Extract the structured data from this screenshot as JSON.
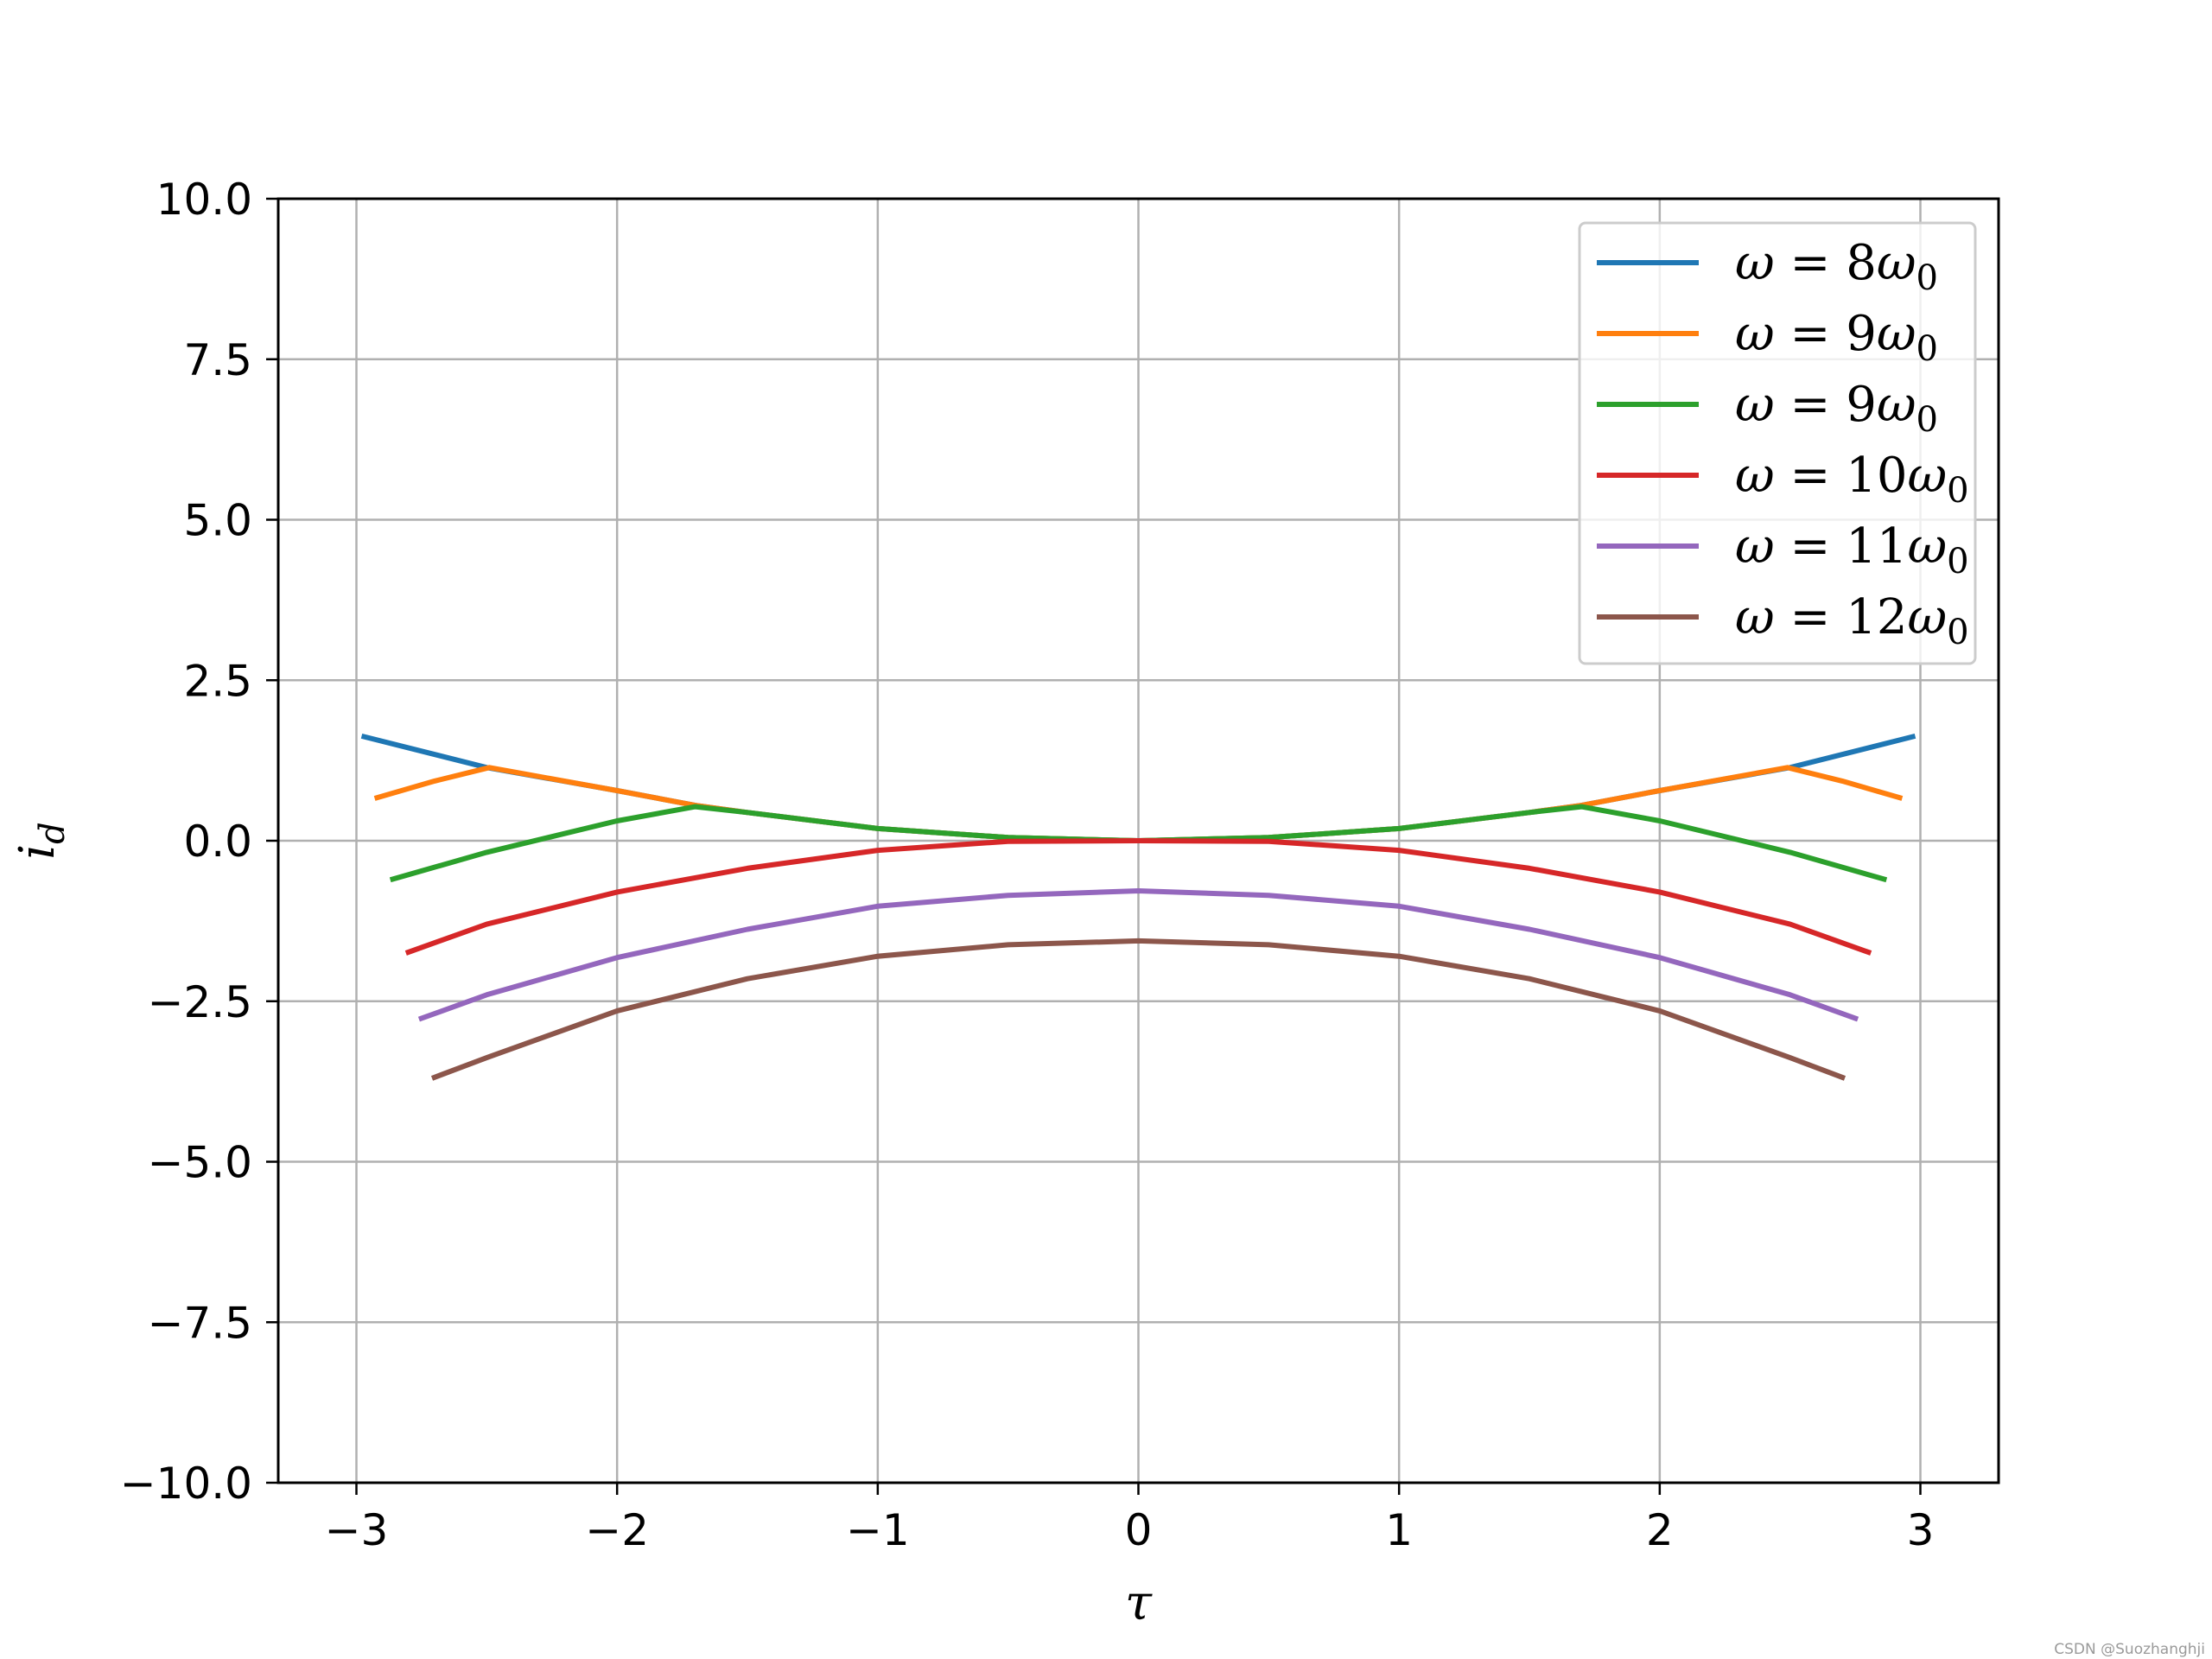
{
  "chart_data": {
    "type": "line",
    "title": "",
    "xlabel": "τ",
    "ylabel_symbol": "i",
    "ylabel_subscript": "d",
    "xlim": [
      -3.3,
      3.3
    ],
    "ylim": [
      -10,
      10
    ],
    "xticks": [
      -3,
      -2,
      -1,
      0,
      1,
      2,
      3
    ],
    "xtick_labels": [
      "−3",
      "−2",
      "−1",
      "0",
      "1",
      "2",
      "3"
    ],
    "yticks": [
      10,
      7.5,
      5,
      2.5,
      0,
      -2.5,
      -5,
      -7.5,
      -10
    ],
    "ytick_labels": [
      "10.0",
      "7.5",
      "5.0",
      "2.5",
      "0.0",
      "−2.5",
      "−5.0",
      "−7.5",
      "−10.0"
    ],
    "grid": true,
    "legend_position": "top-right",
    "series": [
      {
        "name": "ω = 8ω0",
        "label_omega": "ω",
        "label_eq": " = ",
        "label_coef": "8",
        "label_sub": "0",
        "color": "#1f77b4",
        "x": [
          -2.98,
          -2.5,
          -2.0,
          -1.7,
          -1.5,
          -1.0,
          -0.5,
          0,
          0.5,
          1.0,
          1.5,
          1.7,
          2.0,
          2.5,
          2.98
        ],
        "y": [
          1.63,
          1.14,
          0.78,
          0.55,
          0.44,
          0.19,
          0.05,
          0,
          0.05,
          0.19,
          0.44,
          0.55,
          0.78,
          1.14,
          1.63
        ]
      },
      {
        "name": "ω = 9ω0",
        "label_omega": "ω",
        "label_eq": " = ",
        "label_coef": "9",
        "label_sub": "0",
        "color": "#ff7f0e",
        "x": [
          -2.93,
          -2.7,
          -2.49,
          -2.0,
          -1.7,
          -1.5,
          -1.0,
          -0.5,
          0,
          0.5,
          1.0,
          1.5,
          1.7,
          2.0,
          2.49,
          2.7,
          2.93
        ],
        "y": [
          0.66,
          0.93,
          1.14,
          0.78,
          0.55,
          0.44,
          0.19,
          0.05,
          0,
          0.05,
          0.19,
          0.44,
          0.55,
          0.78,
          1.14,
          0.93,
          0.66
        ]
      },
      {
        "name": "ω = 9ω0",
        "label_omega": "ω",
        "label_eq": " = ",
        "label_coef": "9",
        "label_sub": "0",
        "color": "#2ca02c",
        "x": [
          -2.87,
          -2.5,
          -2.0,
          -1.7,
          -1.5,
          -1.0,
          -0.5,
          0,
          0.5,
          1.0,
          1.5,
          1.7,
          2.0,
          2.5,
          2.87
        ],
        "y": [
          -0.61,
          -0.18,
          0.31,
          0.53,
          0.44,
          0.19,
          0.05,
          0,
          0.05,
          0.19,
          0.44,
          0.53,
          0.31,
          -0.18,
          -0.61
        ]
      },
      {
        "name": "ω = 10ω0",
        "label_omega": "ω",
        "label_eq": " = ",
        "label_coef": "10",
        "label_sub": "0",
        "color": "#d62728",
        "x": [
          -2.81,
          -2.5,
          -2.0,
          -1.5,
          -1.0,
          -0.5,
          0,
          0.5,
          1.0,
          1.5,
          2.0,
          2.5,
          2.81
        ],
        "y": [
          -1.75,
          -1.3,
          -0.8,
          -0.43,
          -0.15,
          -0.01,
          0,
          -0.01,
          -0.15,
          -0.43,
          -0.8,
          -1.3,
          -1.75
        ]
      },
      {
        "name": "ω = 11ω0",
        "label_omega": "ω",
        "label_eq": " = ",
        "label_coef": "11",
        "label_sub": "0",
        "color": "#9467bd",
        "x": [
          -2.76,
          -2.5,
          -2.0,
          -1.5,
          -1.0,
          -0.5,
          0,
          0.5,
          1.0,
          1.5,
          2.0,
          2.5,
          2.76
        ],
        "y": [
          -2.78,
          -2.4,
          -1.82,
          -1.38,
          -1.02,
          -0.85,
          -0.78,
          -0.85,
          -1.02,
          -1.38,
          -1.82,
          -2.4,
          -2.78
        ]
      },
      {
        "name": "ω = 12ω0",
        "label_omega": "ω",
        "label_eq": " = ",
        "label_coef": "12",
        "label_sub": "0",
        "color": "#8c564b",
        "x": [
          -2.71,
          -2.5,
          -2.0,
          -1.5,
          -1.0,
          -0.5,
          0,
          0.5,
          1.0,
          1.5,
          2.0,
          2.5,
          2.71
        ],
        "y": [
          -3.7,
          -3.38,
          -2.65,
          -2.15,
          -1.8,
          -1.62,
          -1.56,
          -1.62,
          -1.8,
          -2.15,
          -2.65,
          -3.38,
          -3.7
        ]
      }
    ]
  },
  "watermark": "CSDN @Suozhanghji"
}
